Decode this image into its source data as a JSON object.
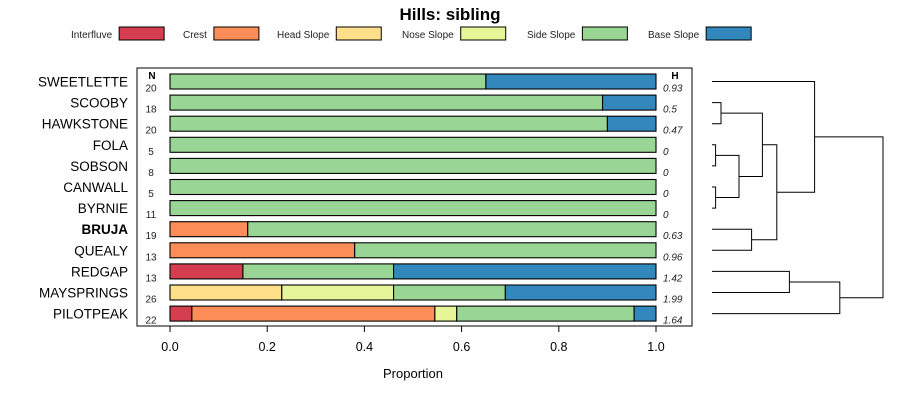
{
  "chart_data": {
    "type": "bar",
    "stacked": "horizontal-proportion",
    "title": "Hills: sibling",
    "xlabel": "Proportion",
    "xlim": [
      0,
      1
    ],
    "xticks": [
      "0.0",
      "0.2",
      "0.4",
      "0.6",
      "0.8",
      "1.0"
    ],
    "n_header": "N",
    "h_header": "H",
    "legend": [
      {
        "name": "Interfluve",
        "color": "#d53e4f"
      },
      {
        "name": "Crest",
        "color": "#fc8d59"
      },
      {
        "name": "Head Slope",
        "color": "#fee08b"
      },
      {
        "name": "Nose Slope",
        "color": "#e6f598"
      },
      {
        "name": "Side Slope",
        "color": "#99d594"
      },
      {
        "name": "Base Slope",
        "color": "#3288bd"
      }
    ],
    "rows": [
      {
        "label": "SWEETLETTE",
        "n": "20",
        "h": "0.93",
        "bold": false,
        "values": [
          0,
          0,
          0,
          0,
          0.65,
          0.35
        ]
      },
      {
        "label": "SCOOBY",
        "n": "18",
        "h": "0.5",
        "bold": false,
        "values": [
          0,
          0,
          0,
          0,
          0.89,
          0.11
        ]
      },
      {
        "label": "HAWKSTONE",
        "n": "20",
        "h": "0.47",
        "bold": false,
        "values": [
          0,
          0,
          0,
          0,
          0.9,
          0.1
        ]
      },
      {
        "label": "FOLA",
        "n": "5",
        "h": "0",
        "bold": false,
        "values": [
          0,
          0,
          0,
          0,
          1.0,
          0
        ]
      },
      {
        "label": "SOBSON",
        "n": "8",
        "h": "0",
        "bold": false,
        "values": [
          0,
          0,
          0,
          0,
          1.0,
          0
        ]
      },
      {
        "label": "CANWALL",
        "n": "5",
        "h": "0",
        "bold": false,
        "values": [
          0,
          0,
          0,
          0,
          1.0,
          0
        ]
      },
      {
        "label": "BYRNIE",
        "n": "11",
        "h": "0",
        "bold": false,
        "values": [
          0,
          0,
          0,
          0,
          1.0,
          0
        ]
      },
      {
        "label": "BRUJA",
        "n": "19",
        "h": "0.63",
        "bold": true,
        "values": [
          0,
          0.16,
          0,
          0,
          0.84,
          0
        ]
      },
      {
        "label": "QUEALY",
        "n": "13",
        "h": "0.96",
        "bold": false,
        "values": [
          0,
          0.38,
          0,
          0,
          0.62,
          0
        ]
      },
      {
        "label": "REDGAP",
        "n": "13",
        "h": "1.42",
        "bold": false,
        "values": [
          0.15,
          0,
          0,
          0,
          0.31,
          0.54
        ]
      },
      {
        "label": "MAYSPRINGS",
        "n": "26",
        "h": "1.99",
        "bold": false,
        "values": [
          0,
          0,
          0.23,
          0.23,
          0.23,
          0.31
        ]
      },
      {
        "label": "PILOTPEAK",
        "n": "22",
        "h": "1.64",
        "bold": false,
        "values": [
          0.045,
          0.5,
          0,
          0.045,
          0.365,
          0.045
        ]
      }
    ],
    "dendrogram": {
      "merges": [
        {
          "a": 3,
          "b": 4,
          "height": 0.02
        },
        {
          "a": 5,
          "b": 6,
          "height": 0.02
        },
        {
          "a": 1,
          "b": 2,
          "height": 0.05
        },
        {
          "a": "n0",
          "b": "n1",
          "height": 0.15
        },
        {
          "a": "n2",
          "b": "n3",
          "height": 0.28
        },
        {
          "a": 7,
          "b": 8,
          "height": 0.22
        },
        {
          "a": "n4",
          "b": "n5",
          "height": 0.36
        },
        {
          "a": 0,
          "b": "n6",
          "height": 0.57
        },
        {
          "a": 9,
          "b": 10,
          "height": 0.43
        },
        {
          "a": "n8",
          "b": 11,
          "height": 0.71
        },
        {
          "a": "n7",
          "b": "n9",
          "height": 0.95
        }
      ]
    }
  }
}
